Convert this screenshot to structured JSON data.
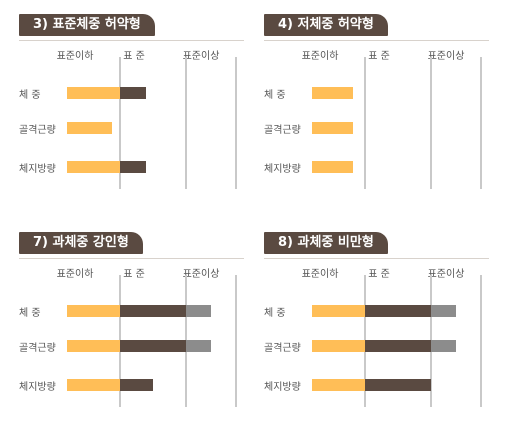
{
  "colors": {
    "title_bg": "#5a4a41",
    "below": "#ffbe57",
    "standard": "#5a4a41",
    "above": "#8c8c8c",
    "separator": "#c9c9c9"
  },
  "column_headers": [
    "표준이하",
    "표  준",
    "표준이상"
  ],
  "row_labels": [
    "체      중",
    "골격근량",
    "체지방량"
  ],
  "panels": [
    {
      "title": "3) 표준체중 허약형",
      "rows": [
        {
          "below": 1.0,
          "standard": 0.4,
          "above": 0
        },
        {
          "below": 0.85,
          "standard": 0,
          "above": 0
        },
        {
          "below": 1.0,
          "standard": 0.4,
          "above": 0
        }
      ]
    },
    {
      "title": "4) 저체중 허약형",
      "rows": [
        {
          "below": 0.77,
          "standard": 0,
          "above": 0
        },
        {
          "below": 0.77,
          "standard": 0,
          "above": 0
        },
        {
          "below": 0.77,
          "standard": 0,
          "above": 0
        }
      ]
    },
    {
      "title": "7) 과체중 강인형",
      "rows": [
        {
          "below": 1.0,
          "standard": 1.0,
          "above": 0.5
        },
        {
          "below": 1.0,
          "standard": 1.0,
          "above": 0.5
        },
        {
          "below": 1.0,
          "standard": 0.5,
          "above": 0
        }
      ]
    },
    {
      "title": "8) 과체중 비만형",
      "rows": [
        {
          "below": 1.0,
          "standard": 1.0,
          "above": 0.5
        },
        {
          "below": 1.0,
          "standard": 1.0,
          "above": 0.5
        },
        {
          "below": 1.0,
          "standard": 1.0,
          "above": 0
        }
      ]
    }
  ],
  "chart_data": [
    {
      "type": "bar",
      "title": "3) 표준체중 허약형",
      "categories": [
        "체      중",
        "골격근량",
        "체지방량"
      ],
      "columns": [
        "표준이하",
        "표  준",
        "표준이상"
      ],
      "segments": [
        {
          "below": 1.0,
          "standard": 0.4,
          "above": 0
        },
        {
          "below": 0.85,
          "standard": 0,
          "above": 0
        },
        {
          "below": 1.0,
          "standard": 0.4,
          "above": 0
        }
      ]
    },
    {
      "type": "bar",
      "title": "4) 저체중 허약형",
      "categories": [
        "체      중",
        "골격근량",
        "체지방량"
      ],
      "columns": [
        "표준이하",
        "표  준",
        "표준이상"
      ],
      "segments": [
        {
          "below": 0.77,
          "standard": 0,
          "above": 0
        },
        {
          "below": 0.77,
          "standard": 0,
          "above": 0
        },
        {
          "below": 0.77,
          "standard": 0,
          "above": 0
        }
      ]
    },
    {
      "type": "bar",
      "title": "7) 과체중 강인형",
      "categories": [
        "체      중",
        "골격근량",
        "체지방량"
      ],
      "columns": [
        "표준이하",
        "표  준",
        "표준이상"
      ],
      "segments": [
        {
          "below": 1.0,
          "standard": 1.0,
          "above": 0.5
        },
        {
          "below": 1.0,
          "standard": 1.0,
          "above": 0.5
        },
        {
          "below": 1.0,
          "standard": 0.5,
          "above": 0
        }
      ]
    },
    {
      "type": "bar",
      "title": "8) 과체중 비만형",
      "categories": [
        "체      중",
        "골격근량",
        "체지방량"
      ],
      "columns": [
        "표준이하",
        "표  준",
        "표준이상"
      ],
      "segments": [
        {
          "below": 1.0,
          "standard": 1.0,
          "above": 0.5
        },
        {
          "below": 1.0,
          "standard": 1.0,
          "above": 0.5
        },
        {
          "below": 1.0,
          "standard": 1.0,
          "above": 0
        }
      ]
    }
  ]
}
